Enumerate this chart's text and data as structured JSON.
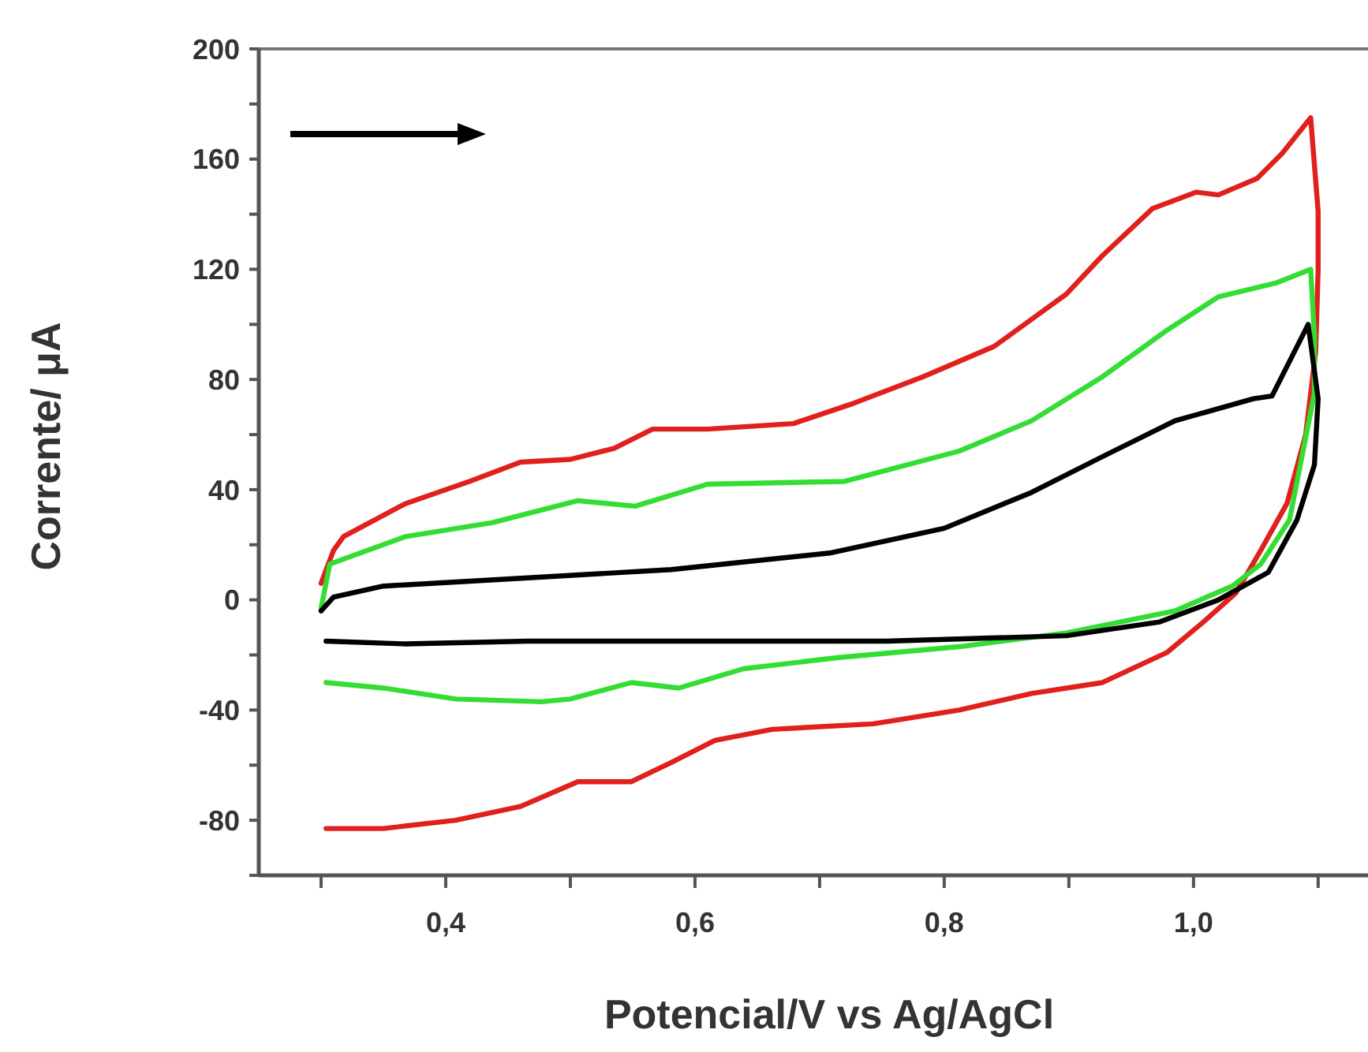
{
  "chart_data": {
    "type": "line",
    "xlabel": "Potencial/V vs Ag/AgCl",
    "ylabel": "Corrente/ μA",
    "xlim": [
      0.25,
      1.14
    ],
    "ylim": [
      -100,
      200
    ],
    "xticks": [
      {
        "value": 0.3,
        "label": null
      },
      {
        "value": 0.4,
        "label": "0,4"
      },
      {
        "value": 0.5,
        "label": null
      },
      {
        "value": 0.6,
        "label": "0,6"
      },
      {
        "value": 0.7,
        "label": null
      },
      {
        "value": 0.8,
        "label": "0,8"
      },
      {
        "value": 0.9,
        "label": null
      },
      {
        "value": 1.0,
        "label": "1,0"
      },
      {
        "value": 1.1,
        "label": null
      }
    ],
    "yticks": [
      {
        "value": -100,
        "label": null
      },
      -80,
      {
        "value": -60,
        "label": null
      },
      -40,
      {
        "value": -20,
        "label": null
      },
      0,
      {
        "value": 20,
        "label": null
      },
      40,
      {
        "value": 60,
        "label": null
      },
      80,
      {
        "value": 100,
        "label": null
      },
      120,
      {
        "value": 140,
        "label": null
      },
      160,
      {
        "value": 180,
        "label": null
      },
      200
    ],
    "grid": false,
    "marker": "none",
    "line_style": "solid",
    "series": [
      {
        "color": "#e0201c",
        "x": [
          0.3,
          0.31,
          0.318,
          0.368,
          0.419,
          0.46,
          0.5,
          0.535,
          0.566,
          0.61,
          0.679,
          0.725,
          0.783,
          0.84,
          0.898,
          0.927,
          0.967,
          1.002,
          1.02,
          1.051,
          1.071,
          1.094,
          1.1,
          1.1,
          1.098,
          1.09,
          1.075,
          1.054,
          1.034,
          1.008,
          0.979,
          0.927,
          0.87,
          0.812,
          0.743,
          0.662,
          0.616,
          0.581,
          0.549,
          0.506,
          0.46,
          0.408,
          0.35,
          0.304
        ],
        "values": [
          6,
          18,
          23,
          35,
          43,
          50,
          51,
          55,
          62,
          62,
          64,
          71,
          81,
          92,
          111,
          125,
          142,
          148,
          147,
          153,
          162,
          175,
          141,
          120,
          90,
          60,
          35,
          18,
          2.5,
          -8,
          -19,
          -30,
          -34,
          -40,
          -45,
          -47,
          -51,
          -59,
          -66,
          -66,
          -75,
          -80,
          -83,
          -83
        ]
      },
      {
        "color": "#33dd33",
        "x": [
          0.3,
          0.307,
          0.368,
          0.437,
          0.506,
          0.552,
          0.61,
          0.72,
          0.812,
          0.87,
          0.927,
          0.979,
          1.02,
          1.066,
          1.094,
          1.097,
          1.097,
          1.077,
          1.054,
          1.031,
          0.985,
          0.898,
          0.812,
          0.714,
          0.639,
          0.587,
          0.549,
          0.5,
          0.477,
          0.408,
          0.35,
          0.304
        ],
        "values": [
          -3,
          13,
          23,
          28,
          36,
          34,
          42,
          43,
          54,
          65,
          81,
          98,
          110,
          115,
          120,
          96,
          75,
          29,
          13,
          5,
          -4,
          -12,
          -17,
          -21,
          -25,
          -32,
          -30,
          -36,
          -37,
          -36,
          -32,
          -30
        ]
      },
      {
        "color": "#000000",
        "x": [
          0.3,
          0.31,
          0.35,
          0.466,
          0.581,
          0.708,
          0.8,
          0.87,
          0.927,
          0.985,
          1.048,
          1.063,
          1.092,
          1.1,
          1.097,
          1.083,
          1.06,
          1.02,
          0.973,
          0.898,
          0.754,
          0.466,
          0.368,
          0.304
        ],
        "values": [
          -4,
          1,
          5,
          8,
          11,
          17,
          26,
          39,
          52,
          65,
          73,
          74,
          100,
          73,
          49,
          29,
          10,
          0,
          -8,
          -13,
          -15,
          -15,
          -16,
          -15
        ]
      }
    ]
  }
}
